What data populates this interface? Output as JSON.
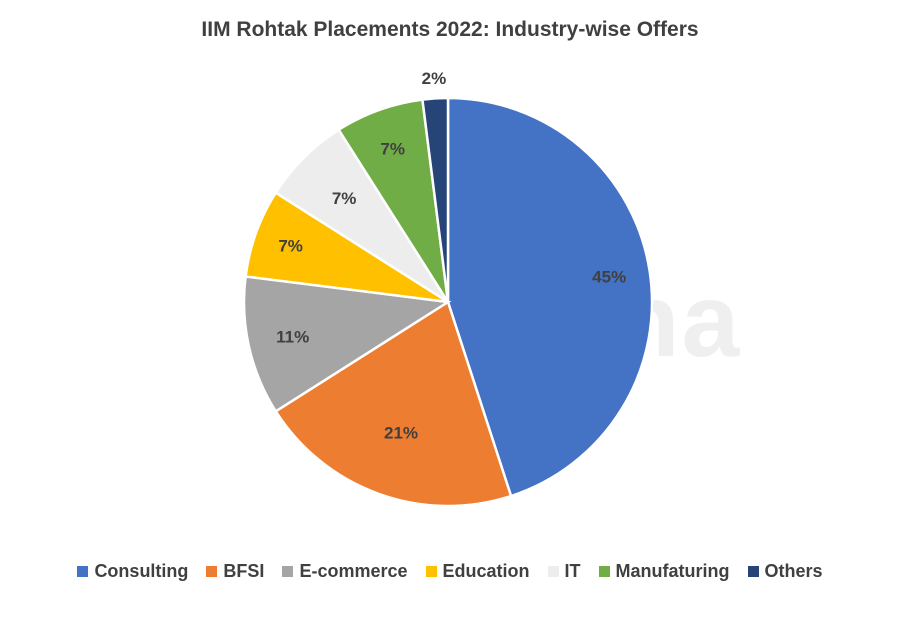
{
  "chart_data": {
    "type": "pie",
    "title": "IIM Rohtak Placements 2022: Industry-wise Offers",
    "categories": [
      "Consulting",
      "BFSI",
      "E-commerce",
      "Education",
      "IT",
      "Manufaturing",
      "Others"
    ],
    "values": [
      45,
      21,
      11,
      7,
      7,
      7,
      2
    ],
    "labels": [
      "45%",
      "21%",
      "11%",
      "7%",
      "7%",
      "7%",
      "2%"
    ],
    "colors": [
      "#4472C4",
      "#ED7D31",
      "#A5A5A5",
      "#FFC000",
      "#EDEDED",
      "#70AD47",
      "#264478"
    ],
    "start_angle": "12 o'clock, clockwise",
    "legend_position": "bottom",
    "value_unit": "%"
  },
  "watermark": "shiksha"
}
